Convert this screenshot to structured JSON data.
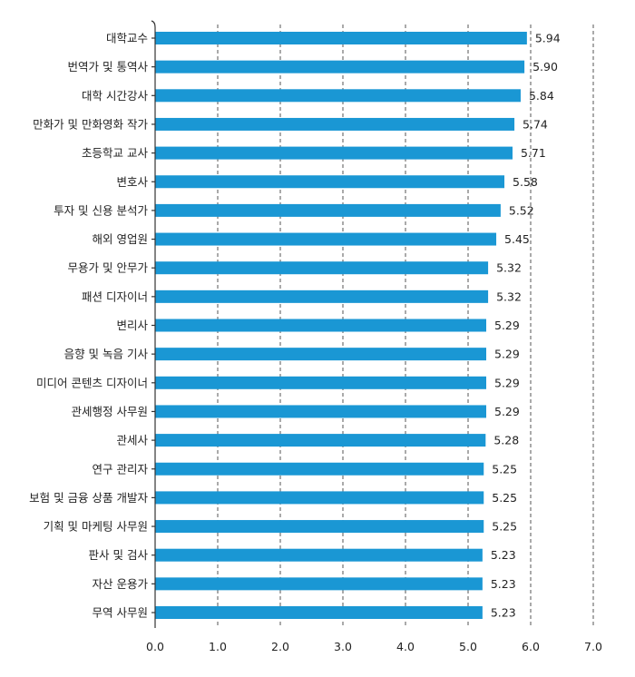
{
  "chart_data": {
    "type": "bar",
    "orientation": "horizontal",
    "categories": [
      "대학교수",
      "번역가 및 통역사",
      "대학 시간강사",
      "만화가 및 만화영화 작가",
      "초등학교 교사",
      "변호사",
      "투자 및 신용 분석가",
      "해외 영업원",
      "무용가 및 안무가",
      "패션 디자이너",
      "변리사",
      "음향 및 녹음 기사",
      "미디어 콘텐츠 디자이너",
      "관세행정 사무원",
      "관세사",
      "연구 관리자",
      "보험 및 금융 상품 개발자",
      "기획 및 마케팅 사무원",
      "판사 및 검사",
      "자산 운용가",
      "무역 사무원"
    ],
    "values": [
      5.94,
      5.9,
      5.84,
      5.74,
      5.71,
      5.58,
      5.52,
      5.45,
      5.32,
      5.32,
      5.29,
      5.29,
      5.29,
      5.29,
      5.28,
      5.25,
      5.25,
      5.25,
      5.23,
      5.23,
      5.23
    ],
    "value_labels": [
      "5.94",
      "5.90",
      "5.84",
      "5.74",
      "5.71",
      "5.58",
      "5.52",
      "5.45",
      "5.32",
      "5.32",
      "5.29",
      "5.29",
      "5.29",
      "5.29",
      "5.28",
      "5.25",
      "5.25",
      "5.25",
      "5.23",
      "5.23",
      "5.23"
    ],
    "xticks": [
      "0.0",
      "1.0",
      "2.0",
      "3.0",
      "4.0",
      "5.0",
      "6.0",
      "7.0"
    ],
    "xlim": [
      0,
      7
    ],
    "grid": "vertical-dashed",
    "bar_color": "#1a97d4",
    "grid_color": "#555555",
    "title": "",
    "xlabel": "",
    "ylabel": ""
  }
}
